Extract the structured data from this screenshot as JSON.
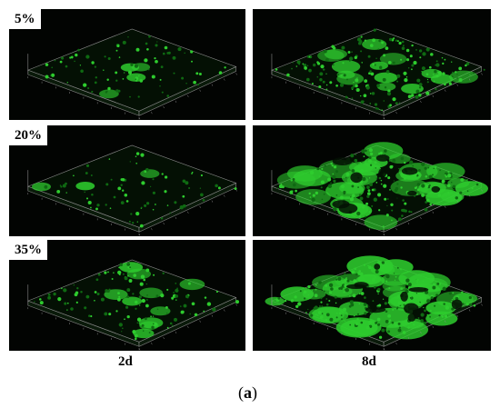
{
  "figure": {
    "rows": [
      {
        "label": "5%"
      },
      {
        "label": "20%"
      },
      {
        "label": "35%"
      }
    ],
    "columns": [
      {
        "label": "2d"
      },
      {
        "label": "8d"
      }
    ],
    "caption": {
      "open": "(",
      "letter": "a",
      "close": ")"
    },
    "panels": [
      {
        "id": "5-2d",
        "coverage": 0.1,
        "density": 0.35
      },
      {
        "id": "5-8d",
        "coverage": 0.35,
        "density": 0.75
      },
      {
        "id": "20-2d",
        "coverage": 0.08,
        "density": 0.3
      },
      {
        "id": "20-8d",
        "coverage": 0.75,
        "density": 0.85
      },
      {
        "id": "35-2d",
        "coverage": 0.25,
        "density": 0.5
      },
      {
        "id": "35-8d",
        "coverage": 0.88,
        "density": 0.95
      }
    ],
    "colors": {
      "background": "#020402",
      "signal": "#2ecc2e",
      "signal_dim": "#0f6a12",
      "frame": "#8a8a8a"
    }
  }
}
